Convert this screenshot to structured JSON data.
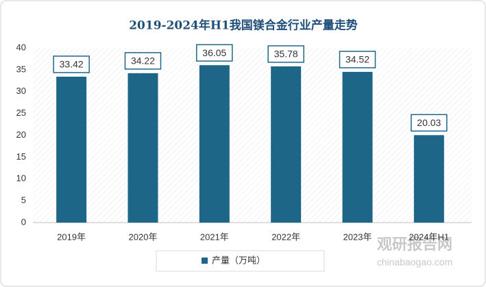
{
  "chart_data": {
    "type": "bar",
    "title": "2019-2024年H1我国镁合金行业产量走势",
    "categories": [
      "2019年",
      "2020年",
      "2021年",
      "2022年",
      "2023年",
      "2024年H1"
    ],
    "series": [
      {
        "name": "产量（万吨）",
        "color": "#1d6688",
        "values": [
          33.42,
          34.22,
          36.05,
          35.78,
          34.52,
          20.03
        ]
      }
    ],
    "ylim": [
      0,
      40
    ],
    "yticks": [
      0,
      5,
      10,
      15,
      20,
      25,
      30,
      35,
      40
    ],
    "grid": false,
    "legend": "bottom",
    "watermark": {
      "name": "观研报告网",
      "url": "chinabaogao.com"
    }
  }
}
